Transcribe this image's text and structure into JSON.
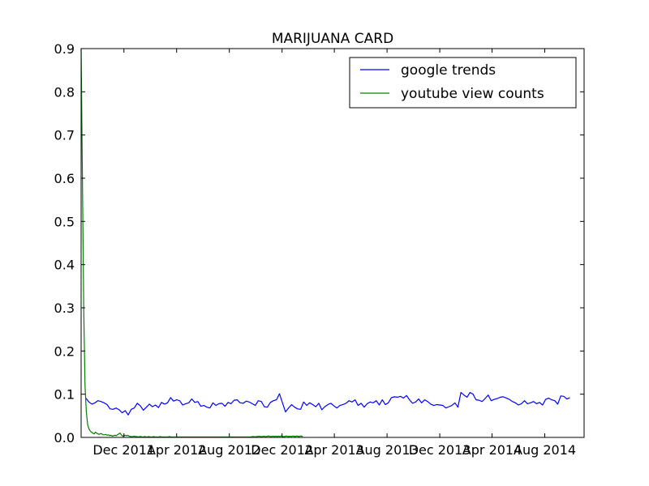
{
  "chart_data": {
    "type": "line",
    "title": "MARIJUANA CARD",
    "xlabel": "",
    "ylabel": "",
    "ylim": [
      0,
      0.9
    ],
    "yticks": [
      "0.0",
      "0.1",
      "0.2",
      "0.3",
      "0.4",
      "0.5",
      "0.6",
      "0.7",
      "0.8",
      "0.9"
    ],
    "xlim": [
      "2011-08-24",
      "2014-10-31"
    ],
    "xticks": [
      {
        "date": "2011-12-01",
        "label": "Dec 2011"
      },
      {
        "date": "2012-04-01",
        "label": "Apr 2012"
      },
      {
        "date": "2012-08-01",
        "label": "Aug 2012"
      },
      {
        "date": "2012-12-01",
        "label": "Dec 2012"
      },
      {
        "date": "2013-04-01",
        "label": "Apr 2013"
      },
      {
        "date": "2013-08-01",
        "label": "Aug 2013"
      },
      {
        "date": "2013-12-01",
        "label": "Dec 2013"
      },
      {
        "date": "2014-04-01",
        "label": "Apr 2014"
      },
      {
        "date": "2014-08-01",
        "label": "Aug 2014"
      }
    ],
    "legend_position": "top-right",
    "grid": false,
    "series": [
      {
        "name": "google trends",
        "color": "#0000ff",
        "start": "2011-09-04",
        "step_days": 7,
        "values": [
          0.091,
          0.082,
          0.077,
          0.08,
          0.085,
          0.083,
          0.08,
          0.076,
          0.066,
          0.065,
          0.068,
          0.064,
          0.057,
          0.062,
          0.052,
          0.065,
          0.068,
          0.079,
          0.073,
          0.063,
          0.07,
          0.077,
          0.071,
          0.075,
          0.069,
          0.081,
          0.077,
          0.08,
          0.092,
          0.084,
          0.087,
          0.085,
          0.075,
          0.078,
          0.08,
          0.089,
          0.081,
          0.083,
          0.072,
          0.074,
          0.07,
          0.068,
          0.08,
          0.074,
          0.078,
          0.079,
          0.072,
          0.081,
          0.078,
          0.086,
          0.087,
          0.08,
          0.079,
          0.084,
          0.082,
          0.078,
          0.074,
          0.085,
          0.083,
          0.071,
          0.07,
          0.081,
          0.085,
          0.087,
          0.101,
          0.08,
          0.059,
          0.068,
          0.076,
          0.07,
          0.066,
          0.065,
          0.082,
          0.074,
          0.08,
          0.076,
          0.071,
          0.079,
          0.064,
          0.071,
          0.076,
          0.079,
          0.073,
          0.068,
          0.074,
          0.076,
          0.079,
          0.085,
          0.082,
          0.087,
          0.074,
          0.079,
          0.07,
          0.078,
          0.082,
          0.08,
          0.085,
          0.075,
          0.087,
          0.076,
          0.08,
          0.092,
          0.094,
          0.093,
          0.095,
          0.091,
          0.097,
          0.087,
          0.079,
          0.082,
          0.089,
          0.08,
          0.087,
          0.083,
          0.077,
          0.074,
          0.076,
          0.075,
          0.074,
          0.068,
          0.071,
          0.074,
          0.08,
          0.07,
          0.104,
          0.098,
          0.093,
          0.104,
          0.1,
          0.087,
          0.086,
          0.083,
          0.09,
          0.098,
          0.085,
          0.088,
          0.09,
          0.093,
          0.094,
          0.091,
          0.088,
          0.083,
          0.08,
          0.075,
          0.078,
          0.085,
          0.078,
          0.08,
          0.083,
          0.078,
          0.081,
          0.075,
          0.088,
          0.091,
          0.087,
          0.085,
          0.077,
          0.096,
          0.095,
          0.089,
          0.092
        ]
      },
      {
        "name": "youtube view counts",
        "color": "#008000",
        "start": "2011-08-24",
        "step_days": 3,
        "values": [
          0.9,
          0.6,
          0.3,
          0.12,
          0.06,
          0.03,
          0.02,
          0.015,
          0.012,
          0.01,
          0.008,
          0.012,
          0.01,
          0.008,
          0.007,
          0.009,
          0.008,
          0.006,
          0.006,
          0.007,
          0.005,
          0.006,
          0.004,
          0.005,
          0.003,
          0.004,
          0.005,
          0.004,
          0.006,
          0.008,
          0.01,
          0.006,
          0.003,
          0.004,
          0.005,
          0.004,
          0.005,
          0.003,
          0.002,
          0.002,
          0.002,
          0.003,
          0.002,
          0.002,
          0.001,
          0.002,
          0.002,
          0.001,
          0.001,
          0.002,
          0.001,
          0.001,
          0.002,
          0.001,
          0.001,
          0.001,
          0.002,
          0.001,
          0.001,
          0.001,
          0.001,
          0.002,
          0.001,
          0.001,
          0.001,
          0.001,
          0.001,
          0.001,
          0.002,
          0.001,
          0.001,
          0.001,
          0.001,
          0.001,
          0.001,
          0.001,
          0.001,
          0.001,
          0.001,
          0.001,
          0.001,
          0.001,
          0.001,
          0.001,
          0.001,
          0.001,
          0.001,
          0.001,
          0.001,
          0.001,
          0.001,
          0.001,
          0.001,
          0.001,
          0.001,
          0.001,
          0.001,
          0.001,
          0.001,
          0.001,
          0.001,
          0.001,
          0.001,
          0.001,
          0.001,
          0.001,
          0.001,
          0.001,
          0.001,
          0.001,
          0.001,
          0.001,
          0.001,
          0.001,
          0.001,
          0.001,
          0.001,
          0.001,
          0.001,
          0.001,
          0.001,
          0.001,
          0.001,
          0.001,
          0.001,
          0.001,
          0.001,
          0.001,
          0.001,
          0.001,
          0.001,
          0.001,
          0.002,
          0.002,
          0.001,
          0.002,
          0.002,
          0.003,
          0.002,
          0.002,
          0.002,
          0.003,
          0.002,
          0.002,
          0.003,
          0.003,
          0.002,
          0.002,
          0.003,
          0.002,
          0.003,
          0.002,
          0.003,
          0.002,
          0.003,
          0.003,
          0.002,
          0.002,
          0.003,
          0.003,
          0.002,
          0.003,
          0.002,
          0.003,
          0.003,
          0.002,
          0.003,
          0.003,
          0.002,
          0.003,
          0.003,
          0.002
        ]
      }
    ]
  }
}
